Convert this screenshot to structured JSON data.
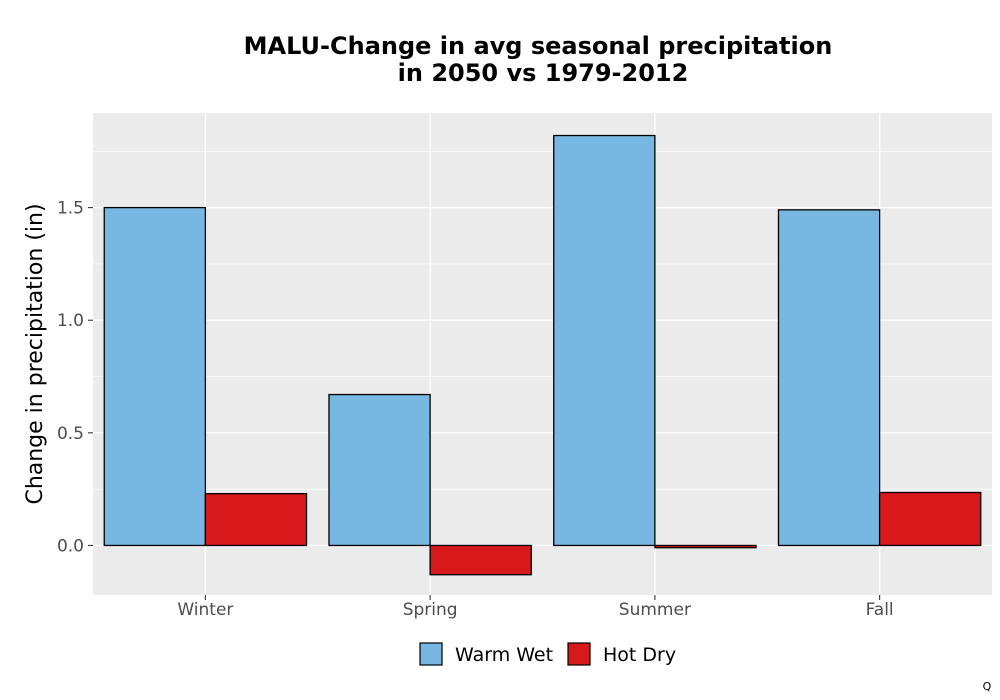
{
  "chart_data": {
    "type": "bar",
    "title": [
      "MALU-Change in avg seasonal precipitation",
      "in 2050 vs 1979-2012"
    ],
    "xlabel": "",
    "ylabel": "Change in precipitation (in)",
    "categories": [
      "Winter",
      "Spring",
      "Summer",
      "Fall"
    ],
    "series": [
      {
        "name": "Warm Wet",
        "color": "#77b7e1",
        "values": [
          1.5,
          0.67,
          1.82,
          1.49
        ]
      },
      {
        "name": "Hot Dry",
        "color": "#d7191c",
        "values": [
          0.23,
          -0.13,
          -0.01,
          0.235
        ]
      }
    ],
    "ylim": [
      -0.22,
      1.92
    ],
    "yticks": [
      0.0,
      0.5,
      1.0,
      1.5
    ],
    "ytick_labels": [
      "0.0",
      "0.5",
      "1.0",
      "1.5"
    ],
    "grid": true,
    "legend_position": "bottom",
    "panel_background": "#ebebeb"
  },
  "corner_mark": "Q"
}
